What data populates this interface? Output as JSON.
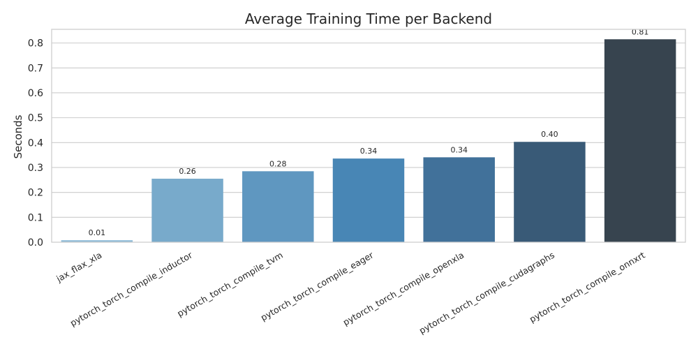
{
  "chart_data": {
    "type": "bar",
    "title": "Average Training Time per Backend",
    "xlabel": "",
    "ylabel": "Seconds",
    "ylim": [
      0,
      0.855
    ],
    "yticks": [
      0.0,
      0.1,
      0.2,
      0.3,
      0.4,
      0.5,
      0.6,
      0.7,
      0.8
    ],
    "ytick_labels": [
      "0.0",
      "0.1",
      "0.2",
      "0.3",
      "0.4",
      "0.5",
      "0.6",
      "0.7",
      "0.8"
    ],
    "grid": true,
    "categories": [
      "jax_flax_xla",
      "pytorch_torch_compile_inductor",
      "pytorch_torch_compile_tvm",
      "pytorch_torch_compile_eager",
      "pytorch_torch_compile_openxla",
      "pytorch_torch_compile_cudagraphs",
      "pytorch_torch_compile_onnxrt"
    ],
    "values": [
      0.008,
      0.255,
      0.285,
      0.336,
      0.341,
      0.403,
      0.815
    ],
    "data_labels": [
      "0.01",
      "0.26",
      "0.28",
      "0.34",
      "0.34",
      "0.40",
      "0.81"
    ],
    "colors": [
      "#8fbcd8",
      "#78aacb",
      "#5f97c0",
      "#4886b5",
      "#41719a",
      "#395a77",
      "#37444f"
    ]
  }
}
